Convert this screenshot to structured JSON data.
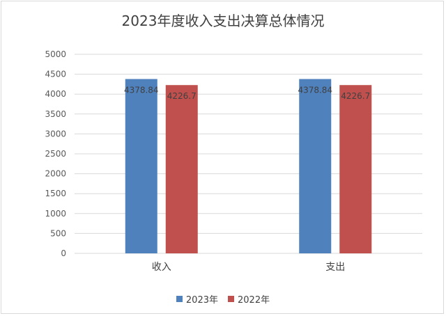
{
  "chart_data": {
    "type": "bar",
    "title": "2023年度收入支出决算总体情况",
    "categories": [
      "收入",
      "支出"
    ],
    "series": [
      {
        "name": "2023年",
        "color": "#4f81bd",
        "values": [
          4378.84,
          4378.84
        ],
        "labels": [
          "4378.84",
          "4378.84"
        ]
      },
      {
        "name": "2022年",
        "color": "#c0504d",
        "values": [
          4226.7,
          4226.7
        ],
        "labels": [
          "4226.7",
          "4226.7"
        ]
      }
    ],
    "xlabel": "",
    "ylabel": "",
    "ylim": [
      0,
      5000
    ],
    "yticks": [
      0,
      500,
      1000,
      1500,
      2000,
      2500,
      3000,
      3500,
      4000,
      4500,
      5000
    ],
    "grid": true,
    "legend_position": "bottom"
  }
}
